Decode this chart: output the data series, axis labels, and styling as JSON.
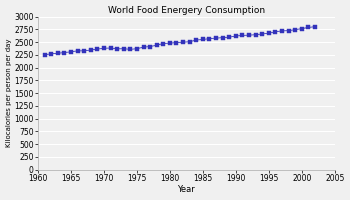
{
  "title": "World Food Energery Consumption",
  "xlabel": "Year",
  "ylabel": "Kilocalories per person per day",
  "xlim": [
    1960,
    2005
  ],
  "ylim": [
    0,
    3000
  ],
  "xticks": [
    1960,
    1965,
    1970,
    1975,
    1980,
    1985,
    1990,
    1995,
    2000,
    2005
  ],
  "yticks": [
    0,
    250,
    500,
    750,
    1000,
    1250,
    1500,
    1750,
    2000,
    2250,
    2500,
    2750,
    3000
  ],
  "line_color": "#3333bb",
  "marker": "s",
  "marker_size": 2.2,
  "plot_bg_color": "#f0f0f0",
  "fig_bg_color": "#f0f0f0",
  "grid_color": "#ffffff",
  "years": [
    1961,
    1962,
    1963,
    1964,
    1965,
    1966,
    1967,
    1968,
    1969,
    1970,
    1971,
    1972,
    1973,
    1974,
    1975,
    1976,
    1977,
    1978,
    1979,
    1980,
    1981,
    1982,
    1983,
    1984,
    1985,
    1986,
    1987,
    1988,
    1989,
    1990,
    1991,
    1992,
    1993,
    1994,
    1995,
    1996,
    1997,
    1998,
    1999,
    2000,
    2001,
    2002
  ],
  "values": [
    2253,
    2272,
    2283,
    2296,
    2311,
    2330,
    2330,
    2347,
    2364,
    2381,
    2385,
    2370,
    2371,
    2360,
    2372,
    2403,
    2414,
    2441,
    2474,
    2481,
    2493,
    2500,
    2509,
    2543,
    2553,
    2570,
    2580,
    2589,
    2598,
    2622,
    2633,
    2638,
    2647,
    2661,
    2677,
    2703,
    2723,
    2726,
    2746,
    2766,
    2790,
    2804
  ],
  "title_fontsize": 6.5,
  "xlabel_fontsize": 6.0,
  "ylabel_fontsize": 5.0,
  "tick_labelsize": 5.5
}
